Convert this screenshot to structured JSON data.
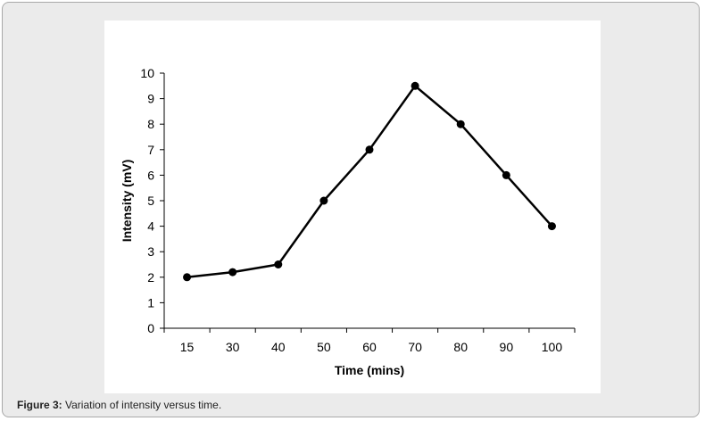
{
  "figure": {
    "caption_label": "Figure 3:",
    "caption_text": " Variation of intensity versus time."
  },
  "chart_data": {
    "type": "line",
    "categories": [
      "15",
      "30",
      "40",
      "50",
      "60",
      "70",
      "80",
      "90",
      "100"
    ],
    "series": [
      {
        "values": [
          2,
          2.2,
          2.5,
          5,
          7,
          9.5,
          8,
          6,
          4
        ],
        "color": "#000000"
      }
    ],
    "xlabel": "Time (mins)",
    "ylabel": "Intensity (mV)",
    "ylim": [
      0,
      10
    ],
    "yticks": [
      "0",
      "1",
      "2",
      "3",
      "4",
      "5",
      "6",
      "7",
      "8",
      "9",
      "10"
    ],
    "grid": false,
    "marker": "circle"
  }
}
